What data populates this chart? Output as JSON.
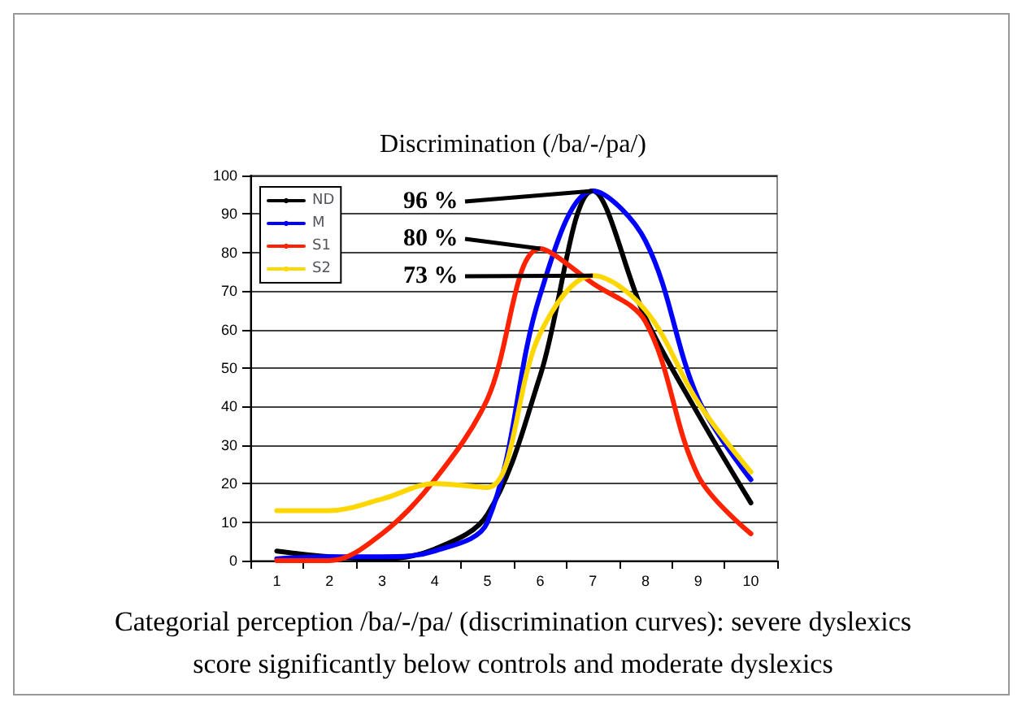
{
  "chart_data": {
    "type": "line",
    "title": "Discrimination (/ba/-/pa/)",
    "categories": [
      "1",
      "2",
      "3",
      "4",
      "5",
      "6",
      "7",
      "8",
      "9",
      "10"
    ],
    "series": [
      {
        "name": "ND",
        "color": "#000000",
        "values": [
          2.5,
          1,
          0.5,
          3,
          12,
          48,
          96,
          63,
          38,
          15
        ]
      },
      {
        "name": "M",
        "color": "#0000ff",
        "values": [
          0.5,
          1,
          1,
          2.5,
          10,
          69,
          96,
          83,
          42,
          21
        ]
      },
      {
        "name": "S1",
        "color": "#ff2200",
        "values": [
          0,
          0,
          7,
          21,
          42,
          81,
          72,
          62,
          22,
          7
        ]
      },
      {
        "name": "S2",
        "color": "#ffd700",
        "values": [
          13,
          13,
          16,
          20,
          19,
          59,
          74,
          65,
          41,
          23
        ]
      }
    ],
    "ylim": [
      0,
      100
    ],
    "yticks": [
      0,
      10,
      20,
      30,
      40,
      50,
      60,
      70,
      80,
      90,
      100
    ],
    "grid": "y",
    "legend": "top left",
    "marker": "none",
    "line_style": "solid",
    "annotations": [
      {
        "text": "96 %",
        "x": "7",
        "y": 96
      },
      {
        "text": "80 %",
        "x": "6",
        "y": 81
      },
      {
        "text": "73 %",
        "x": "7",
        "y": 74
      },
      "Categorial perception /ba/-/pa/ (discrimination curves): severe dyslexics score significantly below controls and moderate dyslexics"
    ]
  }
}
